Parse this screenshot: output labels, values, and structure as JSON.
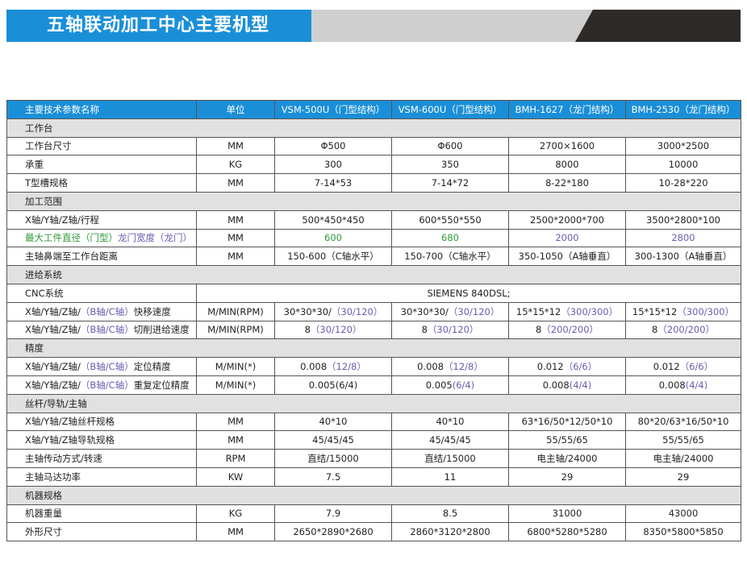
{
  "header": {
    "title": "五轴联动加工中心主要机型"
  },
  "table": {
    "columns": [
      "主要技术参数名称",
      "单位",
      "VSM-500U（门型结构）",
      "VSM-600U（门型结构）",
      "BMH-1627（龙门结构）",
      "BMH-2530（龙门结构）"
    ],
    "rows": [
      {
        "section": "工作台"
      },
      {
        "cells": [
          "工作台尺寸",
          "MM",
          "Φ500",
          "Φ600",
          "2700×1600",
          "3000*2500"
        ]
      },
      {
        "cells": [
          "承重",
          "KG",
          "300",
          "350",
          "8000",
          "10000"
        ]
      },
      {
        "cells": [
          "T型槽规格",
          "MM",
          "7-14*53",
          "7-14*72",
          "8-22*180",
          "10-28*220"
        ]
      },
      {
        "section": "加工范围"
      },
      {
        "cells": [
          "X轴/Y轴/Z轴/行程",
          "MM",
          "500*450*450",
          "600*550*550",
          "2500*2000*700",
          "3500*2800*100"
        ]
      },
      {
        "cells": [
          [
            {
              "text": "最大工件直径（门型）",
              "color": "#2f9a3a"
            },
            {
              "text": "龙门宽度（龙门）",
              "color": "#6a5cb0"
            }
          ],
          "MM",
          [
            {
              "text": "600",
              "color": "#2f9a3a"
            }
          ],
          [
            {
              "text": "680",
              "color": "#2f9a3a"
            }
          ],
          [
            {
              "text": "2000",
              "color": "#6a5cb0"
            }
          ],
          [
            {
              "text": "2800",
              "color": "#6a5cb0"
            }
          ]
        ]
      },
      {
        "cells": [
          "主轴鼻端至工作台距离",
          "MM",
          "150-600（C轴水平）",
          "150-700（C轴水平）",
          "350-1050（A轴垂直）",
          "300-1300（A轴垂直）"
        ]
      },
      {
        "section": "进给系统"
      },
      {
        "cells": [
          "CNC系统",
          "SIEMENS 840DSL;"
        ]
      },
      {
        "cells": [
          [
            {
              "text": "X轴/Y轴/Z轴/"
            },
            {
              "text": "（B轴/C轴）",
              "color": "#6a5cb0"
            },
            {
              "text": "快移速度"
            }
          ],
          "M/MIN(RPM)",
          [
            {
              "text": "30*30*30/"
            },
            {
              "text": "（30/120）",
              "color": "#6a5cb0"
            }
          ],
          [
            {
              "text": "30*30*30/"
            },
            {
              "text": "（30/120）",
              "color": "#6a5cb0"
            }
          ],
          [
            {
              "text": "15*15*12"
            },
            {
              "text": "（300/300）",
              "color": "#6a5cb0"
            }
          ],
          [
            {
              "text": "15*15*12"
            },
            {
              "text": "（300/300）",
              "color": "#6a5cb0"
            }
          ]
        ]
      },
      {
        "cells": [
          [
            {
              "text": "X轴/Y轴/Z轴/"
            },
            {
              "text": "（B轴/C轴）",
              "color": "#6a5cb0"
            },
            {
              "text": "切削进给速度"
            }
          ],
          "M/MIN(RPM)",
          [
            {
              "text": "8"
            },
            {
              "text": "（30/120）",
              "color": "#6a5cb0"
            }
          ],
          [
            {
              "text": "8"
            },
            {
              "text": "（30/120）",
              "color": "#6a5cb0"
            }
          ],
          [
            {
              "text": "8"
            },
            {
              "text": "（200/200）",
              "color": "#6a5cb0"
            }
          ],
          [
            {
              "text": "8"
            },
            {
              "text": "（200/200）",
              "color": "#6a5cb0"
            }
          ]
        ]
      },
      {
        "section": "精度"
      },
      {
        "cells": [
          [
            {
              "text": "X轴/Y轴/Z轴/"
            },
            {
              "text": "（B轴/C轴）",
              "color": "#6a5cb0"
            },
            {
              "text": "定位精度"
            }
          ],
          "M/MIN(*)",
          [
            {
              "text": "0.008"
            },
            {
              "text": "（12/8）",
              "color": "#6a5cb0"
            }
          ],
          [
            {
              "text": "0.008"
            },
            {
              "text": "（12/8）",
              "color": "#6a5cb0"
            }
          ],
          [
            {
              "text": "0.012"
            },
            {
              "text": "（6/6）",
              "color": "#6a5cb0"
            }
          ],
          [
            {
              "text": "0.012"
            },
            {
              "text": "（6/6）",
              "color": "#6a5cb0"
            }
          ]
        ]
      },
      {
        "cells": [
          [
            {
              "text": "X轴/Y轴/Z轴/"
            },
            {
              "text": "（B轴/C轴）",
              "color": "#6a5cb0"
            },
            {
              "text": "重复定位精度"
            }
          ],
          "M/MIN(*)",
          "0.005(6/4)",
          [
            {
              "text": "0.005"
            },
            {
              "text": "(6/4)",
              "color": "#6a5cb0"
            }
          ],
          [
            {
              "text": "0.008"
            },
            {
              "text": "(4/4)",
              "color": "#6a5cb0"
            }
          ],
          [
            {
              "text": "0.008"
            },
            {
              "text": "(4/4)",
              "color": "#6a5cb0"
            }
          ]
        ]
      },
      {
        "section": "丝杆/导轨/主轴"
      },
      {
        "cells": [
          "X轴/Y轴/Z轴丝杆规格",
          "MM",
          "40*10",
          "40*10",
          "63*16/50*12/50*10",
          "80*20/63*16/50*10"
        ]
      },
      {
        "cells": [
          "X轴/Y轴/Z轴导轨规格",
          "MM",
          "45/45/45",
          "45/45/45",
          "55/55/65",
          "55/55/65"
        ]
      },
      {
        "cells": [
          "主轴传动方式/转速",
          "RPM",
          "直结/15000",
          "直结/15000",
          "电主轴/24000",
          "电主轴/24000"
        ]
      },
      {
        "cells": [
          "主轴马达功率",
          "KW",
          "7.5",
          "11",
          "29",
          "29"
        ]
      },
      {
        "section": "机器规格"
      },
      {
        "cells": [
          "机器重量",
          "KG",
          "7.9",
          "8.5",
          "31000",
          "43000"
        ]
      },
      {
        "cells": [
          "外形尺寸",
          "MM",
          "2650*2890*2680",
          "2860*3120*2800",
          "6800*5280*5280",
          "8350*5800*5850"
        ]
      }
    ]
  }
}
